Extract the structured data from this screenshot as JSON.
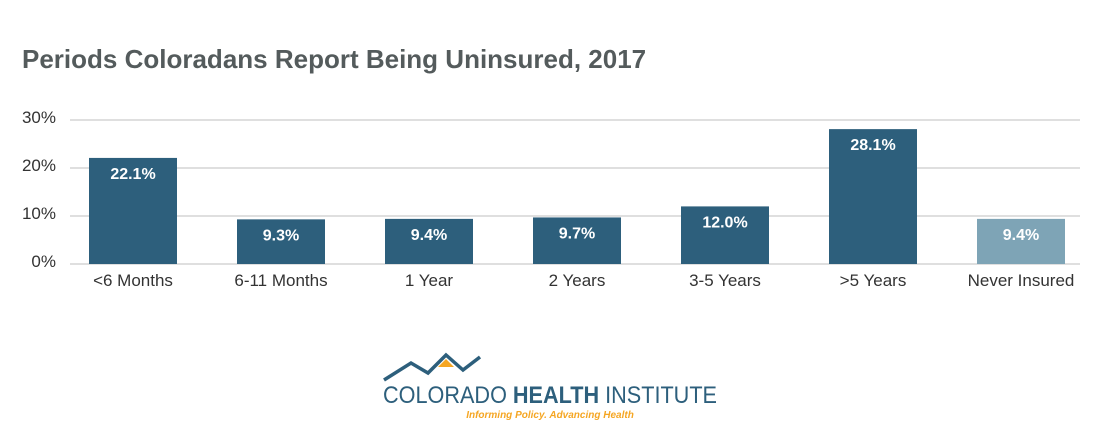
{
  "chart_data": {
    "type": "bar",
    "title": "Periods Coloradans Report Being Uninsured, 2017",
    "categories": [
      "<6 Months",
      "6-11 Months",
      "1 Year",
      "2 Years",
      "3-5 Years",
      ">5 Years",
      "Never Insured"
    ],
    "values": [
      22.1,
      9.3,
      9.4,
      9.7,
      12.0,
      28.1,
      9.4
    ],
    "data_labels": [
      "22.1%",
      "9.3%",
      "9.4%",
      "9.7%",
      "12.0%",
      "28.1%",
      "9.4%"
    ],
    "ylim": [
      0,
      30
    ],
    "y_ticks": [
      0,
      10,
      20,
      30
    ],
    "y_tick_labels": [
      "0%",
      "10%",
      "20%",
      "30%"
    ],
    "grid": true,
    "colors": {
      "bar": "#2d5f7c",
      "highlight_bar": "#7ea4b6",
      "grid": "#bfbfbf",
      "title": "#545b5c"
    },
    "highlight_index": 6
  },
  "logo": {
    "name": "COLORADO",
    "name_bold": "HEALTH",
    "name_end": "INSTITUTE",
    "tagline": "Informing Policy. Advancing Health",
    "colors": {
      "navy": "#2d5f7c",
      "gold": "#f5a623"
    }
  }
}
